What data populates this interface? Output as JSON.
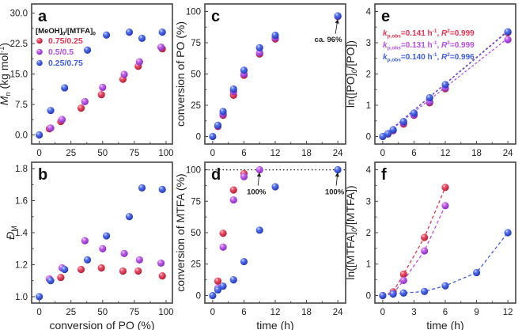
{
  "colors": {
    "red": "#e8344f",
    "purple": "#b84fe8",
    "blue": "#3f5ee8",
    "axis": "#444444",
    "text": "#222222"
  },
  "legend": {
    "title": "[MeOH]0/[MTFA]0",
    "entries": [
      {
        "label": "0.75/0.25",
        "series": "red"
      },
      {
        "label": "0.5/0.5",
        "series": "purple"
      },
      {
        "label": "0.25/0.75",
        "series": "blue"
      }
    ]
  },
  "chart_data": [
    {
      "id": "a",
      "panel_label": "a",
      "type": "scatter",
      "xlabel": "",
      "ylabel": "Mn (kg mol-1)",
      "xlim": [
        -6,
        105
      ],
      "ylim": [
        -2.25,
        32.25
      ],
      "xticks": [
        0,
        25,
        50,
        75,
        100
      ],
      "xtick_labels": [
        "0",
        "25",
        "50",
        "75",
        "100"
      ],
      "yticks": [
        0,
        7.5,
        15,
        22.5,
        30
      ],
      "ytick_labels": [
        "0.0",
        "7.5",
        "15.0",
        "22.5",
        "30.0"
      ],
      "series": [
        {
          "name": "0.75/0.25",
          "color": "red",
          "x": [
            8,
            17,
            33,
            49,
            66,
            78,
            97
          ],
          "y": [
            1.5,
            3.3,
            6.6,
            9.9,
            13.7,
            16.9,
            21.2
          ]
        },
        {
          "name": "0.5/0.5",
          "color": "purple",
          "x": [
            9,
            18,
            36,
            50,
            67,
            79,
            96
          ],
          "y": [
            1.7,
            3.8,
            8.2,
            11.7,
            14.9,
            18.0,
            21.6
          ]
        },
        {
          "name": "0.25/0.75",
          "color": "blue",
          "x": [
            0,
            9,
            20,
            38,
            53,
            71,
            81,
            97
          ],
          "y": [
            0,
            6.0,
            11.6,
            20.9,
            24.6,
            25.3,
            23.8,
            25.3
          ]
        }
      ]
    },
    {
      "id": "b",
      "panel_label": "b",
      "type": "scatter",
      "xlabel": "conversion of PO (%)",
      "ylabel": "ĐM",
      "xlim": [
        -6,
        105
      ],
      "ylim": [
        0.96,
        1.84
      ],
      "xticks": [
        0,
        25,
        50,
        75,
        100
      ],
      "xtick_labels": [
        "0",
        "25",
        "50",
        "75",
        "100"
      ],
      "yticks": [
        1.0,
        1.2,
        1.4,
        1.6,
        1.8
      ],
      "ytick_labels": [
        "1.0",
        "1.2",
        "1.4",
        "1.6",
        "1.8"
      ],
      "series": [
        {
          "name": "0.75/0.25",
          "color": "red",
          "x": [
            8,
            17,
            33,
            49,
            66,
            78,
            97
          ],
          "y": [
            1.11,
            1.12,
            1.17,
            1.18,
            1.16,
            1.16,
            1.13
          ]
        },
        {
          "name": "0.5/0.5",
          "color": "purple",
          "x": [
            8,
            18,
            36,
            50,
            67,
            79,
            96
          ],
          "y": [
            1.11,
            1.18,
            1.35,
            1.3,
            1.27,
            1.23,
            1.21
          ]
        },
        {
          "name": "0.25/0.75",
          "color": "blue",
          "x": [
            0,
            9,
            20,
            38,
            53,
            71,
            81,
            97
          ],
          "y": [
            1.0,
            1.1,
            1.17,
            1.23,
            1.38,
            1.5,
            1.68,
            1.67
          ]
        }
      ]
    },
    {
      "id": "c",
      "panel_label": "c",
      "type": "scatter",
      "xlabel": "",
      "ylabel": "conversion of PO (%)",
      "xlim": [
        -1.5,
        25.5
      ],
      "ylim": [
        -6,
        106
      ],
      "xticks": [
        0,
        6,
        12,
        18,
        24
      ],
      "xtick_labels": [
        "0",
        "6",
        "12",
        "18",
        "24"
      ],
      "yticks": [
        0,
        25,
        50,
        75,
        100
      ],
      "ytick_labels": [
        "0",
        "25",
        "50",
        "75",
        "100"
      ],
      "series": [
        {
          "name": "0.75/0.25",
          "color": "red",
          "x": [
            1,
            2,
            4,
            6,
            9,
            12,
            24
          ],
          "y": [
            8,
            17,
            33,
            49,
            66,
            78,
            96
          ]
        },
        {
          "name": "0.5/0.5",
          "color": "purple",
          "x": [
            1,
            2,
            4,
            6,
            9,
            12,
            24
          ],
          "y": [
            8.5,
            18,
            36,
            50,
            67,
            79,
            96
          ]
        },
        {
          "name": "0.25/0.75",
          "color": "blue",
          "x": [
            0,
            1,
            2,
            4,
            6,
            9,
            12,
            24
          ],
          "y": [
            0,
            9,
            20,
            38,
            53,
            71,
            81,
            96.5
          ]
        }
      ],
      "annotations": [
        {
          "text": "ca. 96%",
          "x": 24,
          "y": 96
        }
      ]
    },
    {
      "id": "d",
      "panel_label": "d",
      "type": "scatter",
      "xlabel": "time (h)",
      "ylabel": "conversion of MTFA (%)",
      "xlim": [
        -1.5,
        25.5
      ],
      "ylim": [
        -6,
        106
      ],
      "xticks": [
        0,
        6,
        12,
        18,
        24
      ],
      "xtick_labels": [
        "0",
        "6",
        "12",
        "18",
        "24"
      ],
      "yticks": [
        0,
        25,
        50,
        75,
        100
      ],
      "ytick_labels": [
        "0",
        "25",
        "50",
        "75",
        "100"
      ],
      "reference_line": {
        "y": 100,
        "style": "dotted"
      },
      "series": [
        {
          "name": "0.75/0.25",
          "color": "red",
          "x": [
            1,
            2,
            4,
            6
          ],
          "y": [
            11.5,
            49.5,
            84,
            97
          ]
        },
        {
          "name": "0.5/0.5",
          "color": "purple",
          "x": [
            1,
            2,
            4,
            6,
            9
          ],
          "y": [
            6,
            38.5,
            76,
            94.5,
            100
          ]
        },
        {
          "name": "0.25/0.75",
          "color": "blue",
          "x": [
            0,
            1,
            2,
            4,
            6,
            9,
            12,
            24
          ],
          "y": [
            0,
            4.5,
            7.5,
            12.5,
            27,
            52,
            86.5,
            100
          ]
        }
      ],
      "annotations": [
        {
          "text": "100%",
          "x": 9,
          "y": 100
        },
        {
          "text": "100%",
          "x": 24,
          "y": 100
        }
      ]
    },
    {
      "id": "e",
      "panel_label": "e",
      "type": "scatter",
      "xlabel": "",
      "ylabel": "ln([PO]0/[PO])",
      "xlim": [
        -1.5,
        25.5
      ],
      "ylim": [
        -0.24,
        4.24
      ],
      "xticks": [
        0,
        6,
        12,
        18,
        24
      ],
      "xtick_labels": [
        "0",
        "6",
        "12",
        "18",
        "24"
      ],
      "yticks": [
        0,
        1,
        2,
        3,
        4
      ],
      "ytick_labels": [
        "0",
        "1",
        "2",
        "3",
        "4"
      ],
      "fits": [
        {
          "series": "red",
          "k": "0.141",
          "r2": "0.999",
          "slope": 0.141
        },
        {
          "series": "purple",
          "k": "0.131",
          "r2": "0.999",
          "slope": 0.131
        },
        {
          "series": "blue",
          "k": "0.140",
          "r2": "0.996",
          "slope": 0.14
        }
      ],
      "fit_text": {
        "k_sym": "k",
        "k_sub": "p,obs",
        "unit": "h",
        "unit_sup": "-1",
        "r_sym": "R",
        "r_sup": "2"
      },
      "series": [
        {
          "name": "0.75/0.25",
          "color": "red",
          "x": [
            1,
            2,
            4,
            6,
            9,
            12,
            24
          ],
          "y": [
            0.08,
            0.19,
            0.4,
            0.68,
            1.08,
            1.53,
            3.33
          ]
        },
        {
          "name": "0.5/0.5",
          "color": "purple",
          "x": [
            1,
            2,
            4,
            6,
            9,
            12,
            24
          ],
          "y": [
            0.09,
            0.2,
            0.44,
            0.69,
            1.11,
            1.56,
            3.1
          ]
        },
        {
          "name": "0.25/0.75",
          "color": "blue",
          "x": [
            0,
            1,
            2,
            4,
            6,
            9,
            12,
            24
          ],
          "y": [
            0,
            0.09,
            0.22,
            0.48,
            0.75,
            1.24,
            1.66,
            3.35
          ]
        }
      ]
    },
    {
      "id": "f",
      "panel_label": "f",
      "type": "line",
      "xlabel": "time (h)",
      "ylabel": "ln([MTFA]0/[MTFA])",
      "xlim": [
        -0.75,
        12.75
      ],
      "ylim": [
        -0.24,
        4.24
      ],
      "xticks": [
        0,
        3,
        6,
        9,
        12
      ],
      "xtick_labels": [
        "0",
        "3",
        "6",
        "9",
        "12"
      ],
      "yticks": [
        0,
        1,
        2,
        3,
        4
      ],
      "ytick_labels": [
        "0",
        "1",
        "2",
        "3",
        "4"
      ],
      "series": [
        {
          "name": "0.75/0.25",
          "color": "red",
          "x": [
            0,
            1,
            2,
            4,
            6
          ],
          "y": [
            0,
            0.12,
            0.68,
            1.85,
            3.44
          ]
        },
        {
          "name": "0.5/0.5",
          "color": "purple",
          "x": [
            1,
            2,
            4,
            6
          ],
          "y": [
            0.06,
            0.48,
            1.42,
            2.86
          ]
        },
        {
          "name": "0.25/0.75",
          "color": "blue",
          "x": [
            0,
            1,
            2,
            4,
            6,
            9,
            12
          ],
          "y": [
            0,
            0.05,
            0.08,
            0.13,
            0.31,
            0.73,
            2.0
          ]
        }
      ]
    }
  ]
}
